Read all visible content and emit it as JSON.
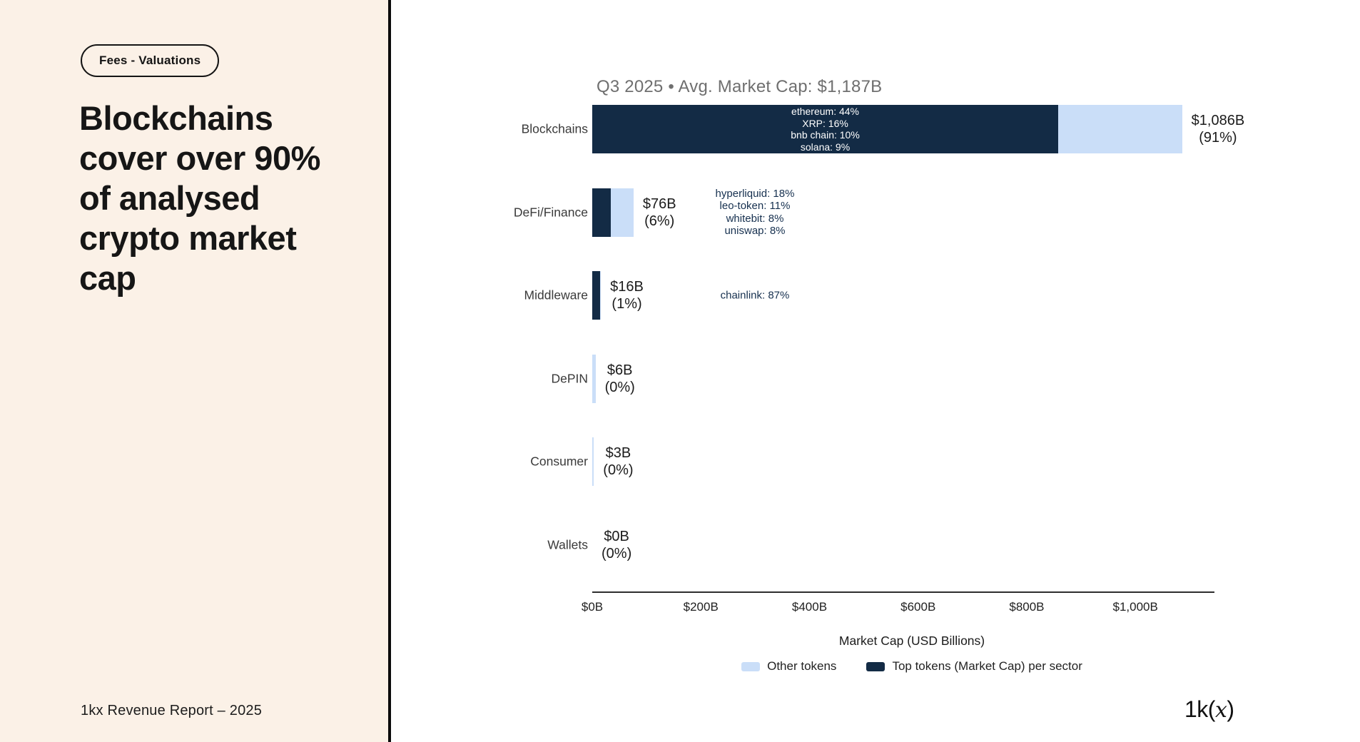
{
  "left_panel": {
    "badge": "Fees - Valuations",
    "title_lines": [
      "Blockchains",
      "cover over 90%",
      "of analysed",
      "crypto market",
      "cap"
    ],
    "footer": "1kx Revenue Report  – 2025"
  },
  "logo": {
    "prefix": "1k(",
    "x": "x",
    "suffix": ")"
  },
  "colors": {
    "left_bg": "#FBF1E7",
    "top_tokens_dark": "#132B45",
    "other_tokens_light": "#CADEF8",
    "title_gray": "#6F6F6F"
  },
  "chart_data": {
    "type": "bar",
    "orientation": "horizontal",
    "title": "Q3 2025 • Avg. Market Cap: $1,187B",
    "xlabel": "Market Cap (USD Billions)",
    "xlim": [
      0,
      1145
    ],
    "xticks": [
      0,
      200,
      400,
      600,
      800,
      1000
    ],
    "xtick_labels": [
      "$0B",
      "$200B",
      "$400B",
      "$600B",
      "$800B",
      "$1,000B"
    ],
    "grid": false,
    "legend_position": "bottom-center",
    "legend": [
      {
        "label": "Other tokens",
        "color": "#CADEF8"
      },
      {
        "label": "Top tokens (Market Cap) per sector",
        "color": "#132B45"
      }
    ],
    "rows": [
      {
        "category": "Blockchains",
        "total_usd_b": 1086,
        "value_label": "$1,086B",
        "share_label": "(91%)",
        "top_tokens_share_pct": 79,
        "annotation_inside": true,
        "tokens": [
          "ethereum: 44%",
          "XRP: 16%",
          "bnb chain: 10%",
          "solana: 9%"
        ]
      },
      {
        "category": "DeFi/Finance",
        "total_usd_b": 76,
        "value_label": "$76B",
        "share_label": "(6%)",
        "top_tokens_share_pct": 45,
        "annotation_inside": false,
        "tokens": [
          "hyperliquid: 18%",
          "leo-token: 11%",
          "whitebit: 8%",
          "uniswap: 8%"
        ]
      },
      {
        "category": "Middleware",
        "total_usd_b": 16,
        "value_label": "$16B",
        "share_label": "(1%)",
        "top_tokens_share_pct": 87,
        "annotation_inside": false,
        "tokens": [
          "chainlink: 87%"
        ]
      },
      {
        "category": "DePIN",
        "total_usd_b": 6,
        "value_label": "$6B",
        "share_label": "(0%)",
        "top_tokens_share_pct": 0,
        "annotation_inside": false,
        "tokens": []
      },
      {
        "category": "Consumer",
        "total_usd_b": 3,
        "value_label": "$3B",
        "share_label": "(0%)",
        "top_tokens_share_pct": 0,
        "annotation_inside": false,
        "tokens": []
      },
      {
        "category": "Wallets",
        "total_usd_b": 0,
        "value_label": "$0B",
        "share_label": "(0%)",
        "top_tokens_share_pct": 0,
        "annotation_inside": false,
        "tokens": []
      }
    ]
  }
}
